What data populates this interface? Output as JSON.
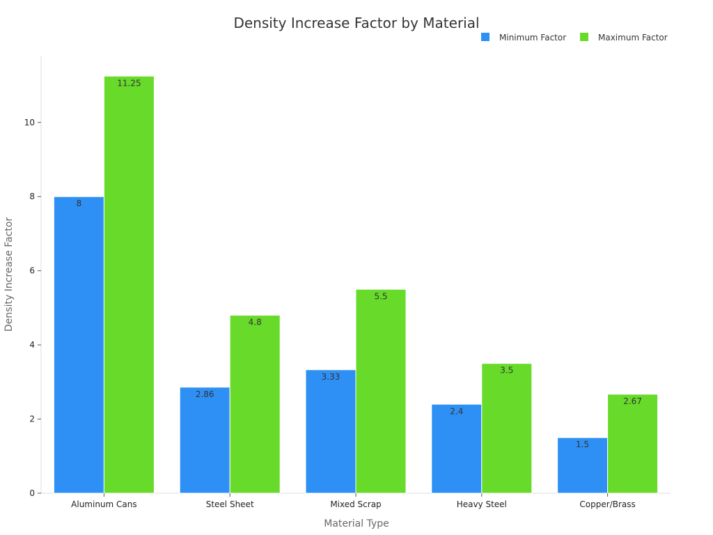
{
  "chart_data": {
    "type": "bar",
    "title": "Density Increase Factor by Material",
    "xlabel": "Material Type",
    "ylabel": "Density Increase Factor",
    "categories": [
      "Aluminum Cans",
      "Steel Sheet",
      "Mixed Scrap",
      "Heavy Steel",
      "Copper/Brass"
    ],
    "series": [
      {
        "name": "Minimum Factor",
        "color": "#2e90f5",
        "values": [
          8,
          2.86,
          3.33,
          2.4,
          1.5
        ],
        "labels": [
          "8",
          "2.86",
          "3.33",
          "2.4",
          "1.5"
        ]
      },
      {
        "name": "Maximum Factor",
        "color": "#67da2a",
        "values": [
          11.25,
          4.8,
          5.5,
          3.5,
          2.67
        ],
        "labels": [
          "11.25",
          "4.8",
          "5.5",
          "3.5",
          "2.67"
        ]
      }
    ],
    "ylim": [
      0,
      11.8
    ],
    "yticks": [
      0,
      2,
      4,
      6,
      8,
      10
    ],
    "ytick_labels": [
      "0",
      "2",
      "4",
      "6",
      "8",
      "10"
    ],
    "grid": false,
    "legend_position": "top-right"
  }
}
